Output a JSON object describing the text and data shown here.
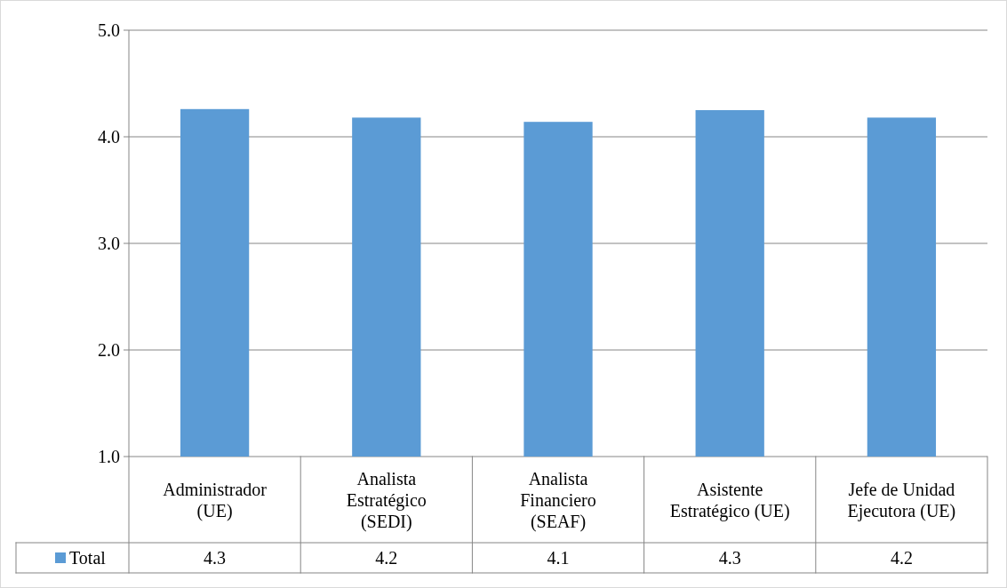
{
  "chart_data": {
    "type": "bar",
    "categories": [
      "Administrador (UE)",
      "Analista Estratégico (SEDI)",
      "Analista Financiero (SEAF)",
      "Asistente Estratégico (UE)",
      "Jefe de Unidad Ejecutora (UE)"
    ],
    "series": [
      {
        "name": "Total",
        "color": "#5b9bd5",
        "values": [
          4.26,
          4.18,
          4.14,
          4.25,
          4.18
        ],
        "value_labels": [
          "4.3",
          "4.2",
          "4.1",
          "4.3",
          "4.2"
        ]
      }
    ],
    "ylim": [
      1,
      5
    ],
    "yticks": [
      {
        "value": 1,
        "label": "1.0"
      },
      {
        "value": 2,
        "label": "2.0"
      },
      {
        "value": 3,
        "label": "3.0"
      },
      {
        "value": 4,
        "label": "4.0"
      },
      {
        "value": 5,
        "label": "5.0"
      }
    ],
    "grid": "y",
    "legend": "bottom left"
  }
}
